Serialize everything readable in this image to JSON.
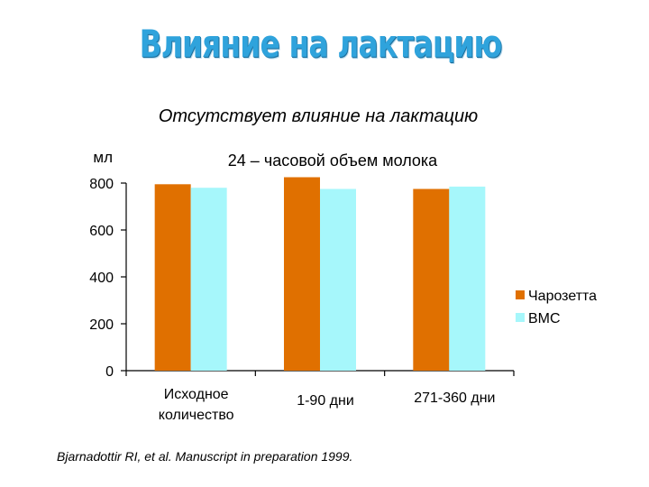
{
  "slide": {
    "title": "Влияние на лактацию",
    "subtitle": "Отсутствует влияние на лактацию",
    "citation": "Bjarnadottir RI, et al. Manuscript in preparation 1999."
  },
  "chart_data": {
    "type": "bar",
    "title": "24 – часовой объем молока",
    "ylabel": "мл",
    "xlabel": "",
    "ylim": [
      0,
      800
    ],
    "yticks": [
      0,
      200,
      400,
      600,
      800
    ],
    "categories": [
      [
        "Исходное",
        "количество"
      ],
      [
        "1-90 дни"
      ],
      [
        "271-360 дни"
      ]
    ],
    "series": [
      {
        "name": "Чарозетта",
        "color": "#e07000",
        "values": [
          795,
          825,
          775
        ]
      },
      {
        "name": "ВМС",
        "color": "#a6f7fb",
        "values": [
          780,
          775,
          785
        ]
      }
    ],
    "legend_position": "right",
    "grid": false
  }
}
